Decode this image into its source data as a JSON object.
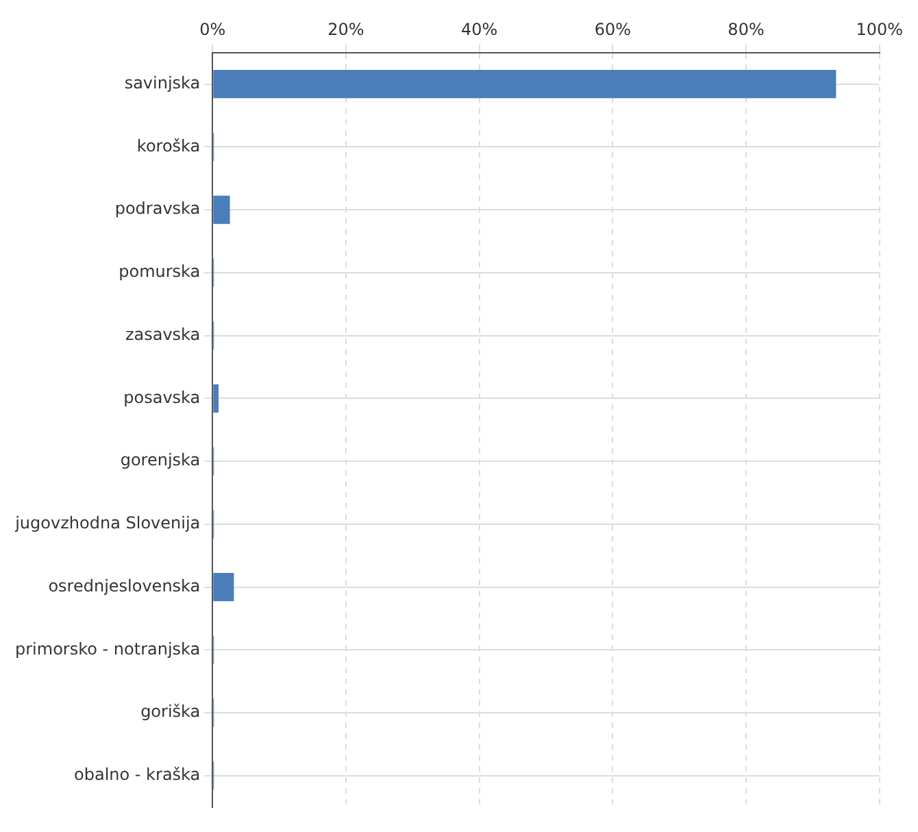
{
  "chart_data": {
    "type": "bar",
    "orientation": "horizontal",
    "categories": [
      "savinjska",
      "koroška",
      "podravska",
      "pomurska",
      "zasavska",
      "posavska",
      "gorenjska",
      "jugovzhodna Slovenija",
      "osrednjeslovenska",
      "primorsko - notranjska",
      "goriška",
      "obalno - kraška"
    ],
    "values": [
      93.5,
      0.2,
      2.6,
      0.2,
      0.2,
      0.9,
      0.2,
      0.2,
      3.2,
      0.2,
      0.2,
      0.2
    ],
    "color": "#4a7ebb",
    "xlim": [
      0,
      100
    ],
    "xticks": [
      {
        "value": 0,
        "label": "0%"
      },
      {
        "value": 20,
        "label": "20%"
      },
      {
        "value": 40,
        "label": "40%"
      },
      {
        "value": 60,
        "label": "60%"
      },
      {
        "value": 80,
        "label": "80%"
      },
      {
        "value": 100,
        "label": "100%"
      }
    ],
    "grid": true
  }
}
